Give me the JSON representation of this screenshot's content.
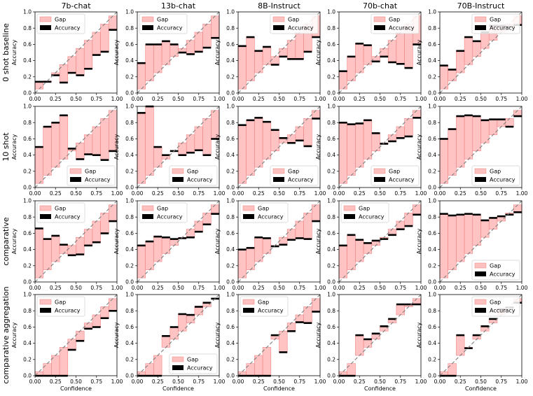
{
  "chart_data": {
    "type": "bar",
    "description_type": "reliability-diagram-grid",
    "columns": [
      "7b-chat",
      "13b-chat",
      "8B-Instruct",
      "70b-chat",
      "70B-Instruct"
    ],
    "rows": [
      "0 shot baseline",
      "10 shot",
      "comparative",
      "comparative aggregation"
    ],
    "xlabel": "Confidence",
    "ylabel": "Accuracy",
    "xlim": [
      0,
      1
    ],
    "ylim": [
      0,
      1
    ],
    "ticks": [
      "0.0",
      "0.2",
      "0.4",
      "0.6",
      "0.8",
      "1.0"
    ],
    "xticks": [
      "0.00",
      "0.25",
      "0.50",
      "0.75",
      "1.00"
    ],
    "legend_labels": {
      "gap": "Gap",
      "accuracy": "Accuracy"
    },
    "colors": {
      "gap_fill": "#ffc0c0",
      "gap_edge": "#f08080",
      "accuracy": "#000000",
      "diagonal": "#7f7f7f"
    },
    "bins": [
      0.025,
      0.075,
      0.125,
      0.175,
      0.225,
      0.275,
      0.325,
      0.375,
      0.425,
      0.475,
      0.525,
      0.575,
      0.625,
      0.675,
      0.725,
      0.775,
      0.825,
      0.875,
      0.925,
      0.975
    ],
    "panels": [
      {
        "row": 0,
        "col": 0,
        "legend": "top-left",
        "bin_width": 0.1,
        "centers": [
          0.05,
          0.15,
          0.25,
          0.35,
          0.45,
          0.55,
          0.65,
          0.75,
          0.85,
          0.95
        ],
        "accuracy": [
          0.14,
          0.14,
          0.22,
          0.13,
          0.25,
          0.22,
          0.3,
          0.47,
          0.51,
          0.78
        ]
      },
      {
        "row": 0,
        "col": 1,
        "legend": "top-left",
        "bin_width": 0.1,
        "centers": [
          0.05,
          0.15,
          0.25,
          0.35,
          0.45,
          0.55,
          0.65,
          0.75,
          0.85,
          0.95
        ],
        "accuracy": [
          0.37,
          0.6,
          0.6,
          0.64,
          0.6,
          0.5,
          0.48,
          0.51,
          0.56,
          0.68
        ]
      },
      {
        "row": 0,
        "col": 2,
        "legend": "top-right",
        "bin_width": 0.1,
        "centers": [
          0.05,
          0.15,
          0.25,
          0.35,
          0.45,
          0.55,
          0.65,
          0.75,
          0.85,
          0.95
        ],
        "accuracy": [
          0.58,
          0.69,
          0.52,
          0.57,
          0.35,
          0.45,
          0.42,
          0.42,
          0.51,
          0.69
        ]
      },
      {
        "row": 0,
        "col": 3,
        "legend": "top-right",
        "bin_width": 0.1,
        "centers": [
          0.05,
          0.15,
          0.25,
          0.35,
          0.45,
          0.55,
          0.65,
          0.75,
          0.85,
          0.95
        ],
        "accuracy": [
          0.27,
          0.45,
          0.61,
          0.59,
          0.39,
          0.45,
          0.38,
          0.36,
          0.31,
          0.6
        ]
      },
      {
        "row": 0,
        "col": 4,
        "legend": "top-right",
        "bin_width": 0.1,
        "centers": [
          0.05,
          0.15,
          0.25,
          0.35,
          0.45,
          0.55,
          0.65,
          0.75,
          0.85,
          0.95
        ],
        "accuracy": [
          0.34,
          0.29,
          0.52,
          0.69,
          0.64,
          0.75,
          0.83,
          0.83,
          0.82,
          0.84
        ]
      },
      {
        "row": 1,
        "col": 0,
        "legend": "bottom-right",
        "bin_width": 0.1,
        "centers": [
          0.05,
          0.15,
          0.25,
          0.35,
          0.45,
          0.55,
          0.65,
          0.75,
          0.85,
          0.95
        ],
        "accuracy": [
          0.5,
          0.75,
          0.8,
          0.89,
          0.48,
          0.35,
          0.41,
          0.4,
          0.34,
          0.45
        ]
      },
      {
        "row": 1,
        "col": 1,
        "legend": "bottom-right",
        "bin_width": 0.1,
        "centers": [
          0.05,
          0.15,
          0.25,
          0.35,
          0.45,
          0.55,
          0.65,
          0.75,
          0.85,
          0.95
        ],
        "accuracy": [
          0.92,
          1.0,
          0.5,
          0.4,
          0.45,
          0.4,
          0.43,
          0.46,
          0.4,
          0.6
        ]
      },
      {
        "row": 1,
        "col": 2,
        "legend": "bottom-right",
        "bin_width": 0.1,
        "centers": [
          0.05,
          0.15,
          0.25,
          0.35,
          0.45,
          0.55,
          0.65,
          0.75,
          0.85,
          0.95
        ],
        "accuracy": [
          0.77,
          0.83,
          0.86,
          0.81,
          0.71,
          0.61,
          0.55,
          0.58,
          0.51,
          0.85
        ]
      },
      {
        "row": 1,
        "col": 3,
        "legend": "bottom-right",
        "bin_width": 0.1,
        "centers": [
          0.05,
          0.15,
          0.25,
          0.35,
          0.45,
          0.55,
          0.65,
          0.75,
          0.85,
          0.95
        ],
        "accuracy": [
          0.8,
          0.78,
          0.79,
          0.83,
          0.67,
          0.54,
          0.57,
          0.61,
          0.63,
          0.86
        ]
      },
      {
        "row": 1,
        "col": 4,
        "legend": "bottom-right",
        "bin_width": 0.1,
        "centers": [
          0.05,
          0.15,
          0.25,
          0.35,
          0.45,
          0.55,
          0.65,
          0.75,
          0.85,
          0.95
        ],
        "accuracy": [
          0.6,
          0.72,
          0.88,
          0.89,
          0.88,
          0.83,
          0.84,
          0.84,
          0.75,
          0.88
        ]
      },
      {
        "row": 2,
        "col": 0,
        "legend": "top-left",
        "bin_width": 0.1,
        "centers": [
          0.05,
          0.15,
          0.25,
          0.35,
          0.45,
          0.55,
          0.65,
          0.75,
          0.85,
          0.95
        ],
        "accuracy": [
          0.66,
          0.53,
          0.57,
          0.46,
          0.33,
          0.34,
          0.45,
          0.49,
          0.6,
          0.75
        ]
      },
      {
        "row": 2,
        "col": 1,
        "legend": "top-left",
        "bin_width": 0.1,
        "centers": [
          0.05,
          0.15,
          0.25,
          0.35,
          0.45,
          0.55,
          0.65,
          0.75,
          0.85,
          0.95
        ],
        "accuracy": [
          0.45,
          0.5,
          0.56,
          0.55,
          0.53,
          0.54,
          0.55,
          0.62,
          0.71,
          0.84
        ]
      },
      {
        "row": 2,
        "col": 2,
        "legend": "top-left",
        "bin_width": 0.1,
        "centers": [
          0.05,
          0.15,
          0.25,
          0.35,
          0.45,
          0.55,
          0.65,
          0.75,
          0.85,
          0.95
        ],
        "accuracy": [
          0.4,
          0.42,
          0.55,
          0.54,
          0.44,
          0.46,
          0.52,
          0.54,
          0.53,
          0.75
        ]
      },
      {
        "row": 2,
        "col": 3,
        "legend": "top-left",
        "bin_width": 0.1,
        "centers": [
          0.05,
          0.15,
          0.25,
          0.35,
          0.45,
          0.55,
          0.65,
          0.75,
          0.85,
          0.95
        ],
        "accuracy": [
          0.45,
          0.58,
          0.52,
          0.48,
          0.51,
          0.53,
          0.58,
          0.65,
          0.69,
          0.83
        ]
      },
      {
        "row": 2,
        "col": 4,
        "legend": "bottom-right",
        "bin_width": 0.1,
        "centers": [
          0.05,
          0.15,
          0.25,
          0.35,
          0.45,
          0.55,
          0.65,
          0.75,
          0.85,
          0.95
        ],
        "accuracy": [
          0.84,
          0.82,
          0.83,
          0.84,
          0.83,
          0.76,
          0.79,
          0.81,
          0.83,
          0.86
        ]
      },
      {
        "row": 3,
        "col": 0,
        "legend": "top-left",
        "bin_width": 0.1,
        "centers": [
          0.05,
          0.15,
          0.25,
          0.35,
          0.45,
          0.55,
          0.65,
          0.75,
          0.85,
          0.95
        ],
        "accuracy": [
          0,
          0,
          0,
          0,
          0.32,
          0.43,
          0.58,
          0.6,
          0.71,
          0.8
        ]
      },
      {
        "row": 3,
        "col": 1,
        "legend": "bottom-right",
        "bin_width": 0.1,
        "centers": [
          0.05,
          0.15,
          0.25,
          0.35,
          0.45,
          0.55,
          0.65,
          0.75,
          0.85,
          0.95
        ],
        "accuracy": [
          0,
          0,
          0,
          0.49,
          0.6,
          0.76,
          0.75,
          0.85,
          0.9,
          0.95
        ]
      },
      {
        "row": 3,
        "col": 2,
        "legend": "top-left",
        "bin_width": 0.1,
        "centers": [
          0.05,
          0.15,
          0.25,
          0.35,
          0.45,
          0.55,
          0.65,
          0.75,
          0.85,
          0.95
        ],
        "accuracy": [
          0,
          0,
          0,
          0,
          0.5,
          0.29,
          0.55,
          0.66,
          0.65,
          0.79
        ]
      },
      {
        "row": 3,
        "col": 3,
        "legend": "none",
        "bin_width": 0.1,
        "centers": [
          0.05,
          0.15,
          0.25,
          0.35,
          0.45,
          0.55,
          0.65,
          0.75,
          0.85,
          0.95
        ],
        "accuracy": [
          0,
          0,
          0.5,
          0.45,
          0.52,
          0.61,
          0.7,
          0.88,
          0.88,
          0.88
        ]
      },
      {
        "row": 3,
        "col": 4,
        "legend": "top-right",
        "bin_width": 0.1,
        "centers": [
          0.05,
          0.15,
          0.25,
          0.35,
          0.45,
          0.55,
          0.65,
          0.75,
          0.85,
          0.95
        ],
        "accuracy": [
          0,
          0,
          0.5,
          0.34,
          0.5,
          0.61,
          0.7,
          0.82,
          0.84,
          0.9
        ]
      }
    ]
  }
}
